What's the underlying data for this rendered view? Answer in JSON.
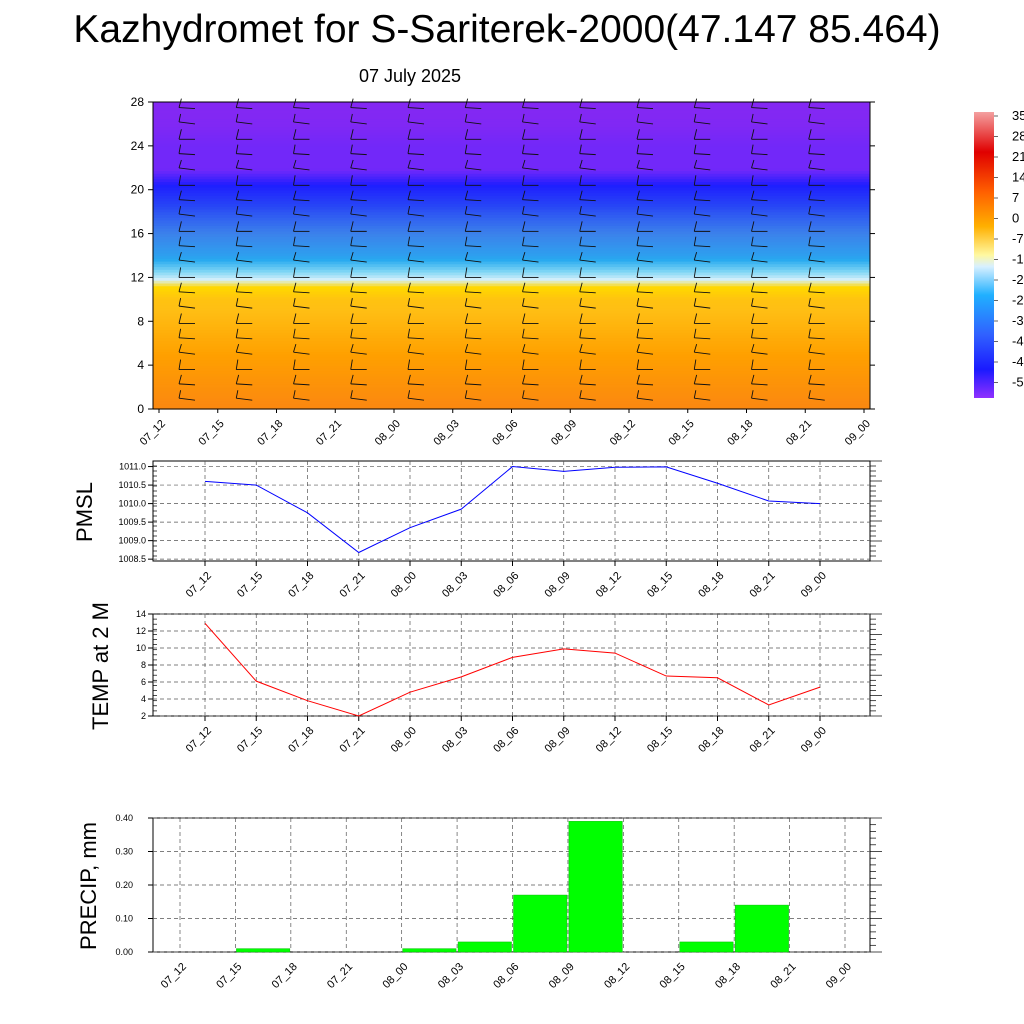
{
  "title": "Kazhydromet for S-Sariterek-2000(47.147 85.464)",
  "subtitle": "07 July 2025",
  "time_labels": [
    "07_12",
    "07_15",
    "07_18",
    "07_21",
    "08_00",
    "08_03",
    "08_06",
    "08_09",
    "08_12",
    "08_15",
    "08_18",
    "08_21",
    "09_00"
  ],
  "colorbar_labels": [
    "35",
    "28",
    "21",
    "14",
    "7",
    "0",
    "-7",
    "-1",
    "-2",
    "-2",
    "-3",
    "-4",
    "-4",
    "-5"
  ],
  "chart_data": [
    {
      "type": "heatmap",
      "title": "",
      "xlabel": "",
      "ylabel": "",
      "categories": [
        "07_12",
        "07_15",
        "07_18",
        "07_21",
        "08_00",
        "08_03",
        "08_06",
        "08_09",
        "08_12",
        "08_15",
        "08_18",
        "08_21",
        "09_00"
      ],
      "ylim": [
        0,
        28
      ],
      "yticks": [
        0,
        4,
        8,
        12,
        16,
        20,
        24,
        28
      ],
      "levels": [
        0,
        2,
        4,
        6,
        8,
        10,
        10.8,
        12,
        14,
        16,
        18,
        20,
        22,
        24,
        26,
        28
      ],
      "temperature": [
        22,
        18,
        14,
        10,
        6,
        2,
        -6,
        -13,
        -24,
        -30,
        -36,
        -44,
        -53,
        -53,
        -57,
        -58
      ],
      "colors": {
        "warm": "#ff8c00",
        "yellow": "#ffd700",
        "cold": "#1e1eff",
        "coldest": "#8a2be2"
      }
    },
    {
      "type": "line",
      "ylabel": "PMSL",
      "categories": [
        "07_12",
        "07_15",
        "07_18",
        "07_21",
        "08_00",
        "08_03",
        "08_06",
        "08_09",
        "08_12",
        "08_15",
        "08_18",
        "08_21",
        "09_00"
      ],
      "values": [
        1010.6,
        1010.5,
        1009.75,
        1008.68,
        1009.35,
        1009.85,
        1011.0,
        1010.87,
        1010.98,
        1010.99,
        1010.55,
        1010.07,
        1010.0
      ],
      "ylim": [
        1008.45,
        1011.15
      ],
      "yticks": [
        1008.5,
        1009.0,
        1009.5,
        1010.0,
        1010.5,
        1011.0
      ],
      "color": "#0000ff",
      "grid": true
    },
    {
      "type": "line",
      "ylabel": "TEMP at 2 M",
      "categories": [
        "07_12",
        "07_15",
        "07_18",
        "07_21",
        "08_00",
        "08_03",
        "08_06",
        "08_09",
        "08_12",
        "08_15",
        "08_18",
        "08_21",
        "09_00"
      ],
      "values": [
        12.9,
        6.1,
        3.8,
        2.0,
        4.8,
        6.6,
        8.9,
        9.9,
        9.4,
        6.7,
        6.5,
        3.3,
        5.4
      ],
      "ylim": [
        2,
        14
      ],
      "yticks": [
        2,
        4,
        6,
        8,
        10,
        12,
        14
      ],
      "color": "#ff0000",
      "grid": true
    },
    {
      "type": "bar",
      "ylabel": "PRECIP, mm",
      "categories": [
        "07_12",
        "07_15",
        "07_18",
        "07_21",
        "08_00",
        "08_03",
        "08_06",
        "08_09",
        "08_12",
        "08_15",
        "08_18",
        "08_21",
        "09_00"
      ],
      "values": [
        0,
        0.01,
        0,
        0,
        0.01,
        0.03,
        0.17,
        0.39,
        0,
        0.03,
        0.14,
        0,
        0
      ],
      "ylim": [
        0,
        0.4
      ],
      "yticks": [
        "0.00",
        "0.10",
        "0.20",
        "0.30",
        "0.40"
      ],
      "color": "#00ff00",
      "grid": true
    }
  ]
}
